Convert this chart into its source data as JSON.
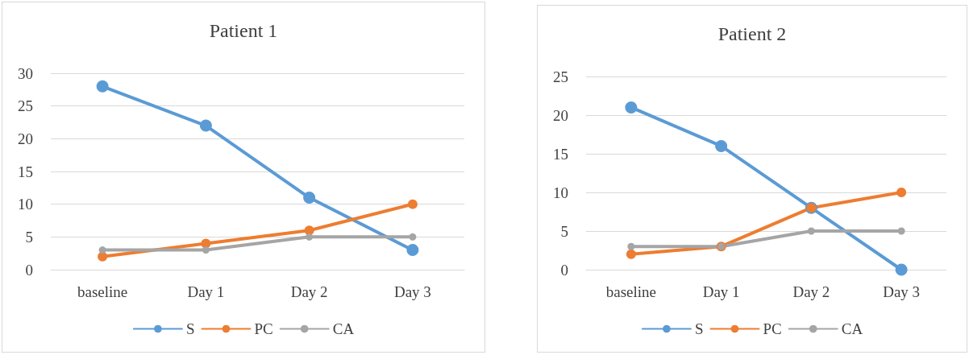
{
  "chart_data": [
    {
      "type": "line",
      "title": "Patient 1",
      "categories": [
        "baseline",
        "Day 1",
        "Day 2",
        "Day 3"
      ],
      "series": [
        {
          "name": "S",
          "color": "#5b9bd5",
          "values": [
            28,
            22,
            11,
            3
          ]
        },
        {
          "name": "PC",
          "color": "#ed7d31",
          "values": [
            2,
            4,
            6,
            10
          ]
        },
        {
          "name": "CA",
          "color": "#a5a5a5",
          "values": [
            3,
            3,
            5,
            5
          ]
        }
      ],
      "ylim": [
        0,
        30
      ],
      "yticks": [
        0,
        5,
        10,
        15,
        20,
        25,
        30
      ],
      "grid": "y",
      "legend": "bottom",
      "marker": "circle",
      "line_style": "solid"
    },
    {
      "type": "line",
      "title": "Patient 2",
      "categories": [
        "baseline",
        "Day 1",
        "Day 2",
        "Day 3"
      ],
      "series": [
        {
          "name": "S",
          "color": "#5b9bd5",
          "values": [
            21,
            16,
            8,
            0
          ]
        },
        {
          "name": "PC",
          "color": "#ed7d31",
          "values": [
            2,
            3,
            8,
            10
          ]
        },
        {
          "name": "CA",
          "color": "#a5a5a5",
          "values": [
            3,
            3,
            5,
            5
          ]
        }
      ],
      "ylim": [
        0,
        25
      ],
      "yticks": [
        0,
        5,
        10,
        15,
        20,
        25
      ],
      "grid": "y",
      "legend": "bottom",
      "marker": "circle",
      "line_style": "solid"
    }
  ]
}
